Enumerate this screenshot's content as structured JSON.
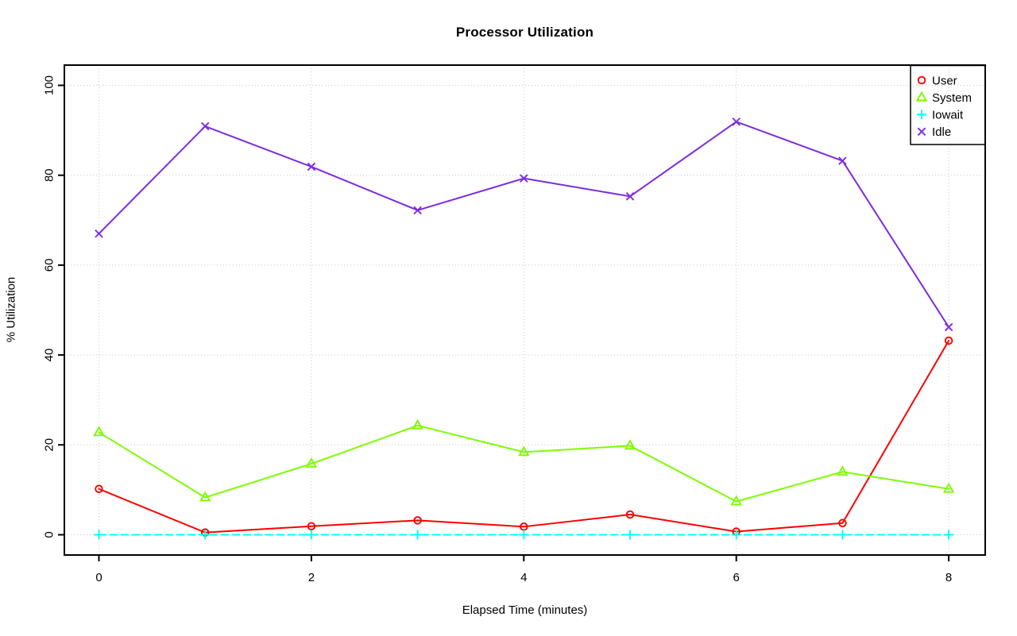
{
  "chart_data": {
    "type": "line",
    "title": "Processor Utilization",
    "xlabel": "Elapsed Time (minutes)",
    "ylabel": "% Utilization",
    "x": [
      0,
      1,
      2,
      3,
      4,
      5,
      6,
      7,
      8
    ],
    "xticks": [
      0,
      2,
      4,
      6,
      8
    ],
    "yticks": [
      0,
      20,
      40,
      60,
      80,
      100
    ],
    "xlim": [
      0,
      8
    ],
    "ylim": [
      0,
      100
    ],
    "grid": "dotted-lightgray",
    "legend_position": "top-right",
    "series": [
      {
        "name": "User",
        "color": "#ff0000",
        "marker": "circle",
        "linestyle": "solid",
        "values": [
          10.2,
          0.5,
          1.9,
          3.2,
          1.8,
          4.5,
          0.7,
          2.6,
          43.2
        ]
      },
      {
        "name": "System",
        "color": "#7dfc00",
        "marker": "triangle",
        "linestyle": "solid",
        "values": [
          22.8,
          8.3,
          15.8,
          24.3,
          18.4,
          19.8,
          7.4,
          14.0,
          10.2
        ]
      },
      {
        "name": "Iowait",
        "color": "#00ffff",
        "marker": "plus",
        "linestyle": "dashed",
        "values": [
          0,
          0,
          0,
          0,
          0,
          0,
          0,
          0,
          0
        ]
      },
      {
        "name": "Idle",
        "color": "#7d2be0",
        "marker": "x",
        "linestyle": "solid",
        "values": [
          67.0,
          90.9,
          81.9,
          72.2,
          79.3,
          75.3,
          91.9,
          83.2,
          46.2
        ]
      }
    ],
    "colors": {
      "axis": "#000000",
      "gridline": "#c8c8c8",
      "background": "#ffffff"
    }
  }
}
